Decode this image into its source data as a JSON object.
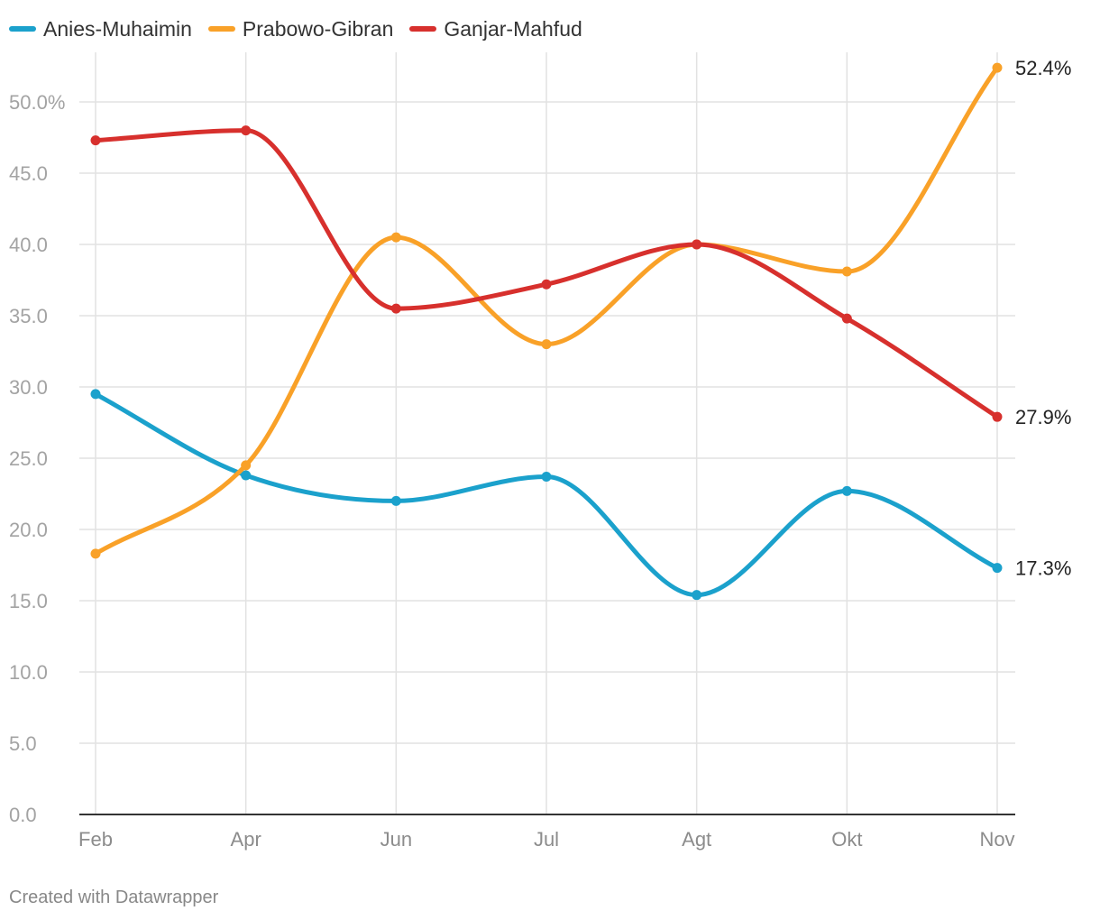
{
  "chart_data": {
    "type": "line",
    "categories": [
      "Feb",
      "Apr",
      "Jun",
      "Jul",
      "Agt",
      "Okt",
      "Nov"
    ],
    "ylim": [
      0,
      50
    ],
    "yticks": [
      "0.0",
      "5.0",
      "10.0",
      "15.0",
      "20.0",
      "25.0",
      "30.0",
      "35.0",
      "40.0",
      "45.0",
      "50.0%"
    ],
    "ytick_values": [
      0,
      5,
      10,
      15,
      20,
      25,
      30,
      35,
      40,
      45,
      50
    ],
    "grid": true,
    "legend_position": "top-left",
    "series": [
      {
        "name": "Anies-Muhaimin",
        "color": "#1ba1cc",
        "values": [
          29.5,
          23.8,
          22.0,
          23.7,
          15.4,
          22.7,
          17.3
        ],
        "end_label": "17.3%"
      },
      {
        "name": "Prabowo-Gibran",
        "color": "#f9a128",
        "values": [
          18.3,
          24.5,
          40.5,
          33.0,
          40.0,
          38.1,
          52.4
        ],
        "end_label": "52.4%"
      },
      {
        "name": "Ganjar-Mahfud",
        "color": "#d7302d",
        "values": [
          47.3,
          48.0,
          35.5,
          37.2,
          40.0,
          34.8,
          27.9
        ],
        "end_label": "27.9%"
      }
    ]
  },
  "footer": {
    "credit": "Created with Datawrapper"
  }
}
